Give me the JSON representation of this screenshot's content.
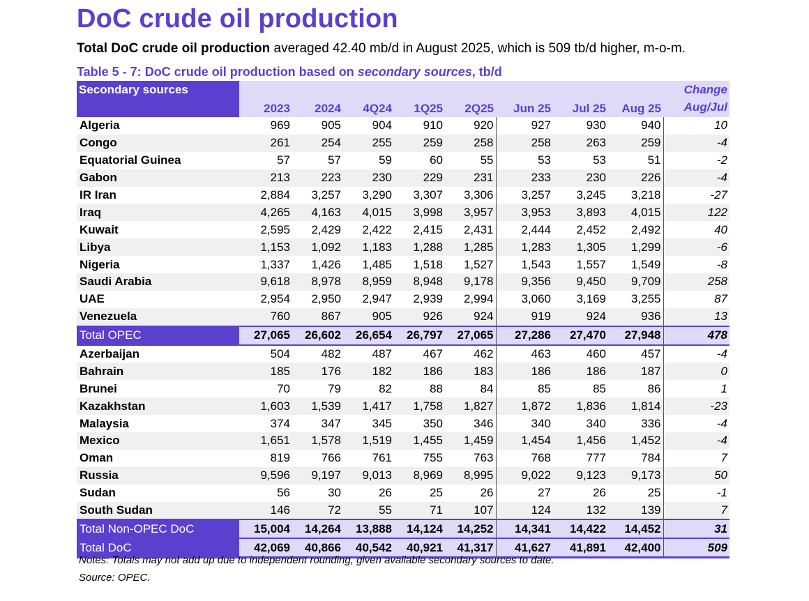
{
  "title": "DoC crude oil production",
  "summary": {
    "bold": "Total DoC crude oil production",
    "rest": " averaged 42.40 mb/d in August 2025, which is 509 tb/d higher, m-o-m."
  },
  "caption": {
    "prefix": "Table 5 - 7: DoC crude oil production based on ",
    "italic": "secondary sources",
    "suffix": ", tb/d"
  },
  "table": {
    "header_label": "Secondary sources",
    "columns": [
      "2023",
      "2024",
      "4Q24",
      "1Q25",
      "2Q25",
      "Jun 25",
      "Jul 25",
      "Aug 25"
    ],
    "change_header": "Change Aug/Jul",
    "rows": [
      {
        "name": "Algeria",
        "values": [
          "969",
          "905",
          "904",
          "910",
          "920",
          "927",
          "930",
          "940"
        ],
        "change": "10"
      },
      {
        "name": "Congo",
        "values": [
          "261",
          "254",
          "255",
          "259",
          "258",
          "258",
          "263",
          "259"
        ],
        "change": "-4"
      },
      {
        "name": "Equatorial Guinea",
        "values": [
          "57",
          "57",
          "59",
          "60",
          "55",
          "53",
          "53",
          "51"
        ],
        "change": "-2"
      },
      {
        "name": "Gabon",
        "values": [
          "213",
          "223",
          "230",
          "229",
          "231",
          "233",
          "230",
          "226"
        ],
        "change": "-4"
      },
      {
        "name": "IR Iran",
        "values": [
          "2,884",
          "3,257",
          "3,290",
          "3,307",
          "3,306",
          "3,257",
          "3,245",
          "3,218"
        ],
        "change": "-27"
      },
      {
        "name": "Iraq",
        "values": [
          "4,265",
          "4,163",
          "4,015",
          "3,998",
          "3,957",
          "3,953",
          "3,893",
          "4,015"
        ],
        "change": "122"
      },
      {
        "name": "Kuwait",
        "values": [
          "2,595",
          "2,429",
          "2,422",
          "2,415",
          "2,431",
          "2,444",
          "2,452",
          "2,492"
        ],
        "change": "40"
      },
      {
        "name": "Libya",
        "values": [
          "1,153",
          "1,092",
          "1,183",
          "1,288",
          "1,285",
          "1,283",
          "1,305",
          "1,299"
        ],
        "change": "-6"
      },
      {
        "name": "Nigeria",
        "values": [
          "1,337",
          "1,426",
          "1,485",
          "1,518",
          "1,527",
          "1,543",
          "1,557",
          "1,549"
        ],
        "change": "-8"
      },
      {
        "name": "Saudi Arabia",
        "values": [
          "9,618",
          "8,978",
          "8,959",
          "8,948",
          "9,178",
          "9,356",
          "9,450",
          "9,709"
        ],
        "change": "258"
      },
      {
        "name": "UAE",
        "values": [
          "2,954",
          "2,950",
          "2,947",
          "2,939",
          "2,994",
          "3,060",
          "3,169",
          "3,255"
        ],
        "change": "87"
      },
      {
        "name": "Venezuela",
        "values": [
          "760",
          "867",
          "905",
          "926",
          "924",
          "919",
          "924",
          "936"
        ],
        "change": "13"
      },
      {
        "name": "Total  OPEC",
        "values": [
          "27,065",
          "26,602",
          "26,654",
          "26,797",
          "27,065",
          "27,286",
          "27,470",
          "27,948"
        ],
        "change": "478",
        "total": "opec"
      },
      {
        "name": "Azerbaijan",
        "values": [
          "504",
          "482",
          "487",
          "467",
          "462",
          "463",
          "460",
          "457"
        ],
        "change": "-4"
      },
      {
        "name": "Bahrain",
        "values": [
          "185",
          "176",
          "182",
          "186",
          "183",
          "186",
          "186",
          "187"
        ],
        "change": "0"
      },
      {
        "name": "Brunei",
        "values": [
          "70",
          "79",
          "82",
          "88",
          "84",
          "85",
          "85",
          "86"
        ],
        "change": "1"
      },
      {
        "name": "Kazakhstan",
        "values": [
          "1,603",
          "1,539",
          "1,417",
          "1,758",
          "1,827",
          "1,872",
          "1,836",
          "1,814"
        ],
        "change": "-23"
      },
      {
        "name": "Malaysia",
        "values": [
          "374",
          "347",
          "345",
          "350",
          "346",
          "340",
          "340",
          "336"
        ],
        "change": "-4"
      },
      {
        "name": "Mexico",
        "values": [
          "1,651",
          "1,578",
          "1,519",
          "1,455",
          "1,459",
          "1,454",
          "1,456",
          "1,452"
        ],
        "change": "-4"
      },
      {
        "name": "Oman",
        "values": [
          "819",
          "766",
          "761",
          "755",
          "763",
          "768",
          "777",
          "784"
        ],
        "change": "7"
      },
      {
        "name": "Russia",
        "values": [
          "9,596",
          "9,197",
          "9,013",
          "8,969",
          "8,995",
          "9,022",
          "9,123",
          "9,173"
        ],
        "change": "50"
      },
      {
        "name": "Sudan",
        "values": [
          "56",
          "30",
          "26",
          "25",
          "26",
          "27",
          "26",
          "25"
        ],
        "change": "-1"
      },
      {
        "name": "South Sudan",
        "values": [
          "146",
          "72",
          "55",
          "71",
          "107",
          "124",
          "132",
          "139"
        ],
        "change": "7"
      },
      {
        "name": "Total Non-OPEC DoC",
        "values": [
          "15,004",
          "14,264",
          "13,888",
          "14,124",
          "14,252",
          "14,341",
          "14,422",
          "14,452"
        ],
        "change": "31",
        "total": "nonopec"
      },
      {
        "name": "Total DoC",
        "values": [
          "42,069",
          "40,866",
          "40,542",
          "40,921",
          "41,317",
          "41,627",
          "41,891",
          "42,400"
        ],
        "change": "509",
        "total": "doc"
      }
    ]
  },
  "notes": "Notes: Totals may not add up due to independent rounding, given available secondary sources to date.",
  "source": "Source: OPEC.",
  "colors": {
    "accent": "#5b3fcf",
    "header_bg": "#dedaf8",
    "stripe": "#f0f0f0"
  }
}
